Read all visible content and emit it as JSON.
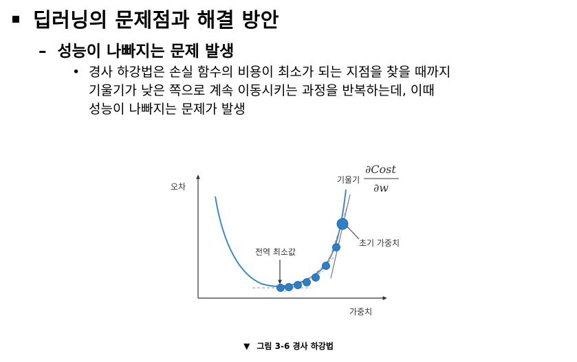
{
  "heading": "딥러닝의 문제점과 해결 방안",
  "subheading": "성능이 나빠지는 문제 발생",
  "bullet_text": "경사 하강법은 손실 함수의 비용이 최소가 되는 지점을 찾을 때까지\n기울기가 낮은 쪽으로 계속 이동시키는 과정을 반복하는데, 이때\n성능이 나빠지는 문제가 발생",
  "figure": {
    "y_axis_label": "오차",
    "x_axis_label": "가중치",
    "global_min_label": "전역 최소값",
    "initial_weight_label": "초기 가중치",
    "slope_label": "기울기",
    "slope_numerator": "∂Cost",
    "slope_denominator": "∂w",
    "curve_color": "#3d88c7",
    "point_color": "#2c7fc9"
  },
  "caption": {
    "marker": "▼",
    "text": "그림 3-6 경사 하강법"
  }
}
